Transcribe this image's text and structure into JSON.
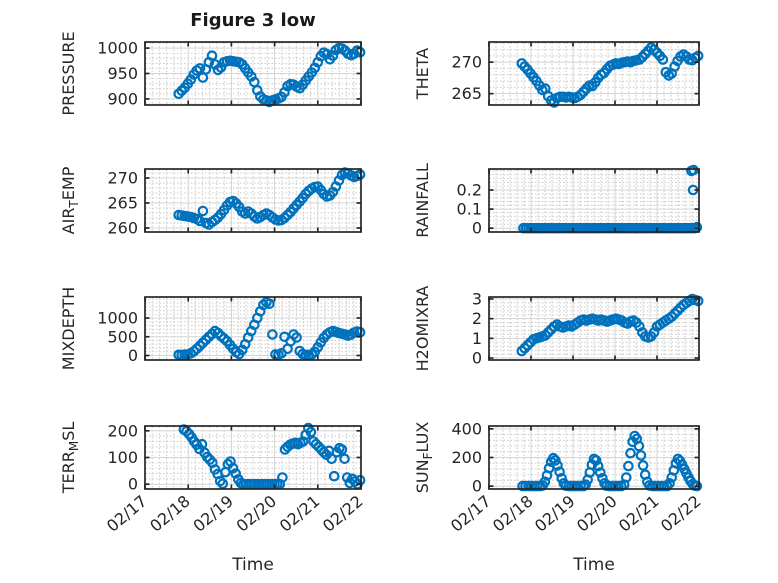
{
  "figure_title": "Figure 3 low",
  "colors": {
    "marker": "#0072BD",
    "axes": "#262626",
    "text": "#262626",
    "grid_major": "#d4d4d4",
    "grid_minor": "#cfcfcf",
    "background": "#ffffff"
  },
  "axes_shared": {
    "xlabel": "Time",
    "xticks": [
      17,
      18,
      19,
      20,
      21,
      22
    ],
    "xtick_labels": [
      "02/17",
      "02/18",
      "02/19",
      "02/20",
      "02/21",
      "02/22"
    ],
    "xlim": [
      17,
      22
    ],
    "x_minor_step": 0.16667,
    "grid": "on",
    "grid_minor_style": "dotted"
  },
  "chart_data": [
    {
      "name": "pressure",
      "type": "scatter",
      "ylabel": "PRESSURE",
      "ylabel_parts": [
        {
          "text": "PRESSURE"
        }
      ],
      "yticks": [
        900,
        950,
        1000
      ],
      "ylim": [
        888,
        1012
      ],
      "y_minor_step": 10,
      "x": [
        17.78,
        17.85,
        17.92,
        17.99,
        18.06,
        18.13,
        18.2,
        18.27,
        18.34,
        18.41,
        18.48,
        18.55,
        18.62,
        18.69,
        18.76,
        18.83,
        18.9,
        18.97,
        19.04,
        19.11,
        19.18,
        19.25,
        19.32,
        19.39,
        19.46,
        19.53,
        19.6,
        19.67,
        19.74,
        19.81,
        19.88,
        19.95,
        20.02,
        20.09,
        20.16,
        20.23,
        20.3,
        20.37,
        20.44,
        20.51,
        20.58,
        20.65,
        20.72,
        20.79,
        20.86,
        20.93,
        21,
        21.07,
        21.14,
        21.21,
        21.28,
        21.35,
        21.42,
        21.49,
        21.56,
        21.63,
        21.7,
        21.77,
        21.84,
        21.91,
        21.98
      ],
      "y": [
        910,
        916,
        922,
        930,
        938,
        948,
        956,
        960,
        942,
        958,
        972,
        985,
        968,
        957,
        962,
        972,
        974,
        975,
        974,
        973,
        972,
        968,
        960,
        952,
        944,
        933,
        917,
        905,
        899,
        897,
        894,
        897,
        899,
        901,
        904,
        913,
        925,
        929,
        928,
        924,
        921,
        928,
        936,
        944,
        952,
        961,
        972,
        984,
        991,
        988,
        978,
        985,
        996,
        1000,
        999,
        995,
        989,
        986,
        989,
        995,
        992
      ]
    },
    {
      "name": "theta",
      "type": "scatter",
      "ylabel": "THETA",
      "ylabel_parts": [
        {
          "text": "THETA"
        }
      ],
      "yticks": [
        265,
        270
      ],
      "ylim": [
        263.2,
        273.2
      ],
      "y_minor_step": 1,
      "x": [
        17.78,
        17.85,
        17.92,
        17.99,
        18.06,
        18.13,
        18.2,
        18.27,
        18.34,
        18.41,
        18.48,
        18.55,
        18.62,
        18.69,
        18.76,
        18.83,
        18.9,
        18.97,
        19.04,
        19.11,
        19.18,
        19.25,
        19.32,
        19.39,
        19.46,
        19.53,
        19.6,
        19.67,
        19.74,
        19.81,
        19.88,
        19.95,
        20.02,
        20.09,
        20.16,
        20.23,
        20.3,
        20.37,
        20.44,
        20.51,
        20.58,
        20.65,
        20.72,
        20.79,
        20.86,
        20.93,
        21,
        21.07,
        21.14,
        21.21,
        21.28,
        21.35,
        21.42,
        21.49,
        21.56,
        21.63,
        21.7,
        21.77,
        21.84,
        21.91,
        21.98
      ],
      "y": [
        269.8,
        269.3,
        268.8,
        268.2,
        267.6,
        267,
        266.3,
        265.6,
        265.8,
        264.6,
        263.9,
        263.6,
        264.3,
        264.5,
        264.5,
        264.4,
        264.5,
        264.4,
        264.3,
        264.5,
        264.8,
        265.3,
        265.8,
        266.3,
        266.2,
        266.8,
        267.5,
        268,
        268.3,
        268.9,
        269.4,
        269.6,
        269.8,
        269.7,
        269.9,
        270,
        270.1,
        270,
        270.2,
        270.3,
        270.4,
        270.8,
        271.3,
        271.8,
        272.3,
        272,
        271.5,
        271,
        270.4,
        268.4,
        267.9,
        268.2,
        269.3,
        270.2,
        270.9,
        271.2,
        270.9,
        270.4,
        270.3,
        270.7,
        271
      ]
    },
    {
      "name": "air_temp",
      "type": "scatter",
      "ylabel": "AIR_TEMP",
      "ylabel_parts": [
        {
          "text": "AIR"
        },
        {
          "text": "T",
          "sub": true
        },
        {
          "text": "EMP"
        }
      ],
      "yticks": [
        260,
        265,
        270
      ],
      "ylim": [
        259.2,
        271.8
      ],
      "y_minor_step": 1,
      "x": [
        17.78,
        17.85,
        17.92,
        17.99,
        18.06,
        18.13,
        18.2,
        18.27,
        18.34,
        18.41,
        18.48,
        18.55,
        18.62,
        18.69,
        18.76,
        18.83,
        18.9,
        18.97,
        19.04,
        19.11,
        19.18,
        19.25,
        19.32,
        19.39,
        19.46,
        19.53,
        19.6,
        19.67,
        19.74,
        19.81,
        19.88,
        19.95,
        20.02,
        20.09,
        20.16,
        20.23,
        20.3,
        20.37,
        20.44,
        20.51,
        20.58,
        20.65,
        20.72,
        20.79,
        20.86,
        20.93,
        21,
        21.07,
        21.14,
        21.21,
        21.28,
        21.35,
        21.42,
        21.49,
        21.56,
        21.63,
        21.7,
        21.77,
        21.84,
        21.91,
        21.98
      ],
      "y": [
        262.6,
        262.5,
        262.4,
        262.3,
        262.2,
        262,
        261.8,
        261.4,
        263.4,
        261,
        260.7,
        261.2,
        261.6,
        262.1,
        262.8,
        263.6,
        264.5,
        265.2,
        265.4,
        264.9,
        264.2,
        263.3,
        262.9,
        263.3,
        262.9,
        262.3,
        261.9,
        262.2,
        262.6,
        262.9,
        262.6,
        262.1,
        261.7,
        261.5,
        261.6,
        262,
        262.6,
        263.2,
        263.9,
        264.6,
        265.3,
        266,
        266.8,
        267.4,
        267.9,
        268.2,
        268.3,
        267.6,
        266.8,
        266.3,
        266.5,
        267.2,
        268.3,
        269.5,
        270.6,
        271.1,
        270.9,
        270.5,
        270.2,
        270.4,
        270.7
      ]
    },
    {
      "name": "rainfall",
      "type": "scatter",
      "ylabel": "RAINFALL",
      "ylabel_parts": [
        {
          "text": "RAINFALL"
        }
      ],
      "yticks": [
        0,
        0.1,
        0.2
      ],
      "ylim": [
        -0.02,
        0.31
      ],
      "y_minor_step": 0.02,
      "x": [
        17.82,
        17.88,
        17.94,
        18,
        18.06,
        18.12,
        18.18,
        18.24,
        18.3,
        18.36,
        18.42,
        18.48,
        18.54,
        18.6,
        18.66,
        18.72,
        18.78,
        18.84,
        18.9,
        18.96,
        19.02,
        19.08,
        19.14,
        19.2,
        19.26,
        19.32,
        19.38,
        19.44,
        19.5,
        19.56,
        19.62,
        19.68,
        19.74,
        19.8,
        19.86,
        19.92,
        19.98,
        20.04,
        20.1,
        20.16,
        20.22,
        20.28,
        20.34,
        20.4,
        20.46,
        20.52,
        20.58,
        20.64,
        20.7,
        20.76,
        20.82,
        20.88,
        20.94,
        21,
        21.06,
        21.12,
        21.18,
        21.24,
        21.3,
        21.36,
        21.42,
        21.48,
        21.54,
        21.6,
        21.66,
        21.72,
        21.78,
        21.84,
        21.9,
        21.82,
        21.87,
        21.86,
        21.95
      ],
      "y": [
        0,
        0,
        0,
        0,
        0,
        0,
        0,
        0,
        0,
        0,
        0,
        0,
        0,
        0,
        0,
        0,
        0,
        0,
        0,
        0,
        0,
        0,
        0,
        0,
        0,
        0,
        0,
        0,
        0,
        0,
        0,
        0,
        0,
        0,
        0,
        0,
        0,
        0,
        0,
        0,
        0,
        0,
        0,
        0,
        0,
        0,
        0,
        0,
        0,
        0,
        0,
        0,
        0,
        0,
        0,
        0,
        0,
        0,
        0,
        0,
        0,
        0,
        0,
        0,
        0,
        0,
        0,
        0,
        0,
        0.3,
        0.305,
        0.2,
        0.005
      ]
    },
    {
      "name": "mixdepth",
      "type": "scatter",
      "ylabel": "MIXDEPTH",
      "ylabel_parts": [
        {
          "text": "MIXDEPTH"
        }
      ],
      "yticks": [
        0,
        500,
        1000
      ],
      "ylim": [
        -120,
        1560
      ],
      "y_minor_step": 100,
      "x": [
        17.78,
        17.85,
        17.92,
        17.99,
        18.06,
        18.13,
        18.2,
        18.27,
        18.34,
        18.41,
        18.48,
        18.55,
        18.62,
        18.69,
        18.76,
        18.83,
        18.9,
        18.97,
        19.04,
        19.11,
        19.18,
        19.25,
        19.32,
        19.39,
        19.46,
        19.53,
        19.6,
        19.67,
        19.74,
        19.81,
        19.88,
        19.95,
        20.02,
        20.09,
        20.16,
        20.23,
        20.3,
        20.37,
        20.44,
        20.51,
        20.58,
        20.65,
        20.72,
        20.79,
        20.86,
        20.93,
        21,
        21.07,
        21.14,
        21.21,
        21.28,
        21.35,
        21.42,
        21.49,
        21.56,
        21.63,
        21.7,
        21.77,
        21.84,
        21.91,
        21.98
      ],
      "y": [
        20,
        15,
        25,
        30,
        60,
        110,
        180,
        260,
        340,
        420,
        500,
        570,
        650,
        600,
        520,
        450,
        380,
        280,
        180,
        90,
        40,
        150,
        300,
        480,
        650,
        820,
        1000,
        1180,
        1350,
        1420,
        1380,
        560,
        30,
        20,
        60,
        500,
        180,
        380,
        560,
        480,
        120,
        40,
        20,
        15,
        30,
        100,
        220,
        350,
        470,
        560,
        620,
        650,
        630,
        600,
        580,
        560,
        530,
        560,
        610,
        640,
        620
      ]
    },
    {
      "name": "h2omixra",
      "type": "scatter",
      "ylabel": "H2OMIXRA",
      "ylabel_parts": [
        {
          "text": "H2OMIXRA"
        }
      ],
      "yticks": [
        0,
        1,
        2,
        3
      ],
      "ylim": [
        -0.1,
        3.1
      ],
      "y_minor_step": 0.2,
      "x": [
        17.78,
        17.85,
        17.92,
        17.99,
        18.06,
        18.13,
        18.2,
        18.27,
        18.34,
        18.41,
        18.48,
        18.55,
        18.62,
        18.69,
        18.76,
        18.83,
        18.9,
        18.97,
        19.04,
        19.11,
        19.18,
        19.25,
        19.32,
        19.39,
        19.46,
        19.53,
        19.6,
        19.67,
        19.74,
        19.81,
        19.88,
        19.95,
        20.02,
        20.09,
        20.16,
        20.23,
        20.3,
        20.37,
        20.44,
        20.51,
        20.58,
        20.65,
        20.72,
        20.79,
        20.86,
        20.93,
        21,
        21.07,
        21.14,
        21.21,
        21.28,
        21.35,
        21.42,
        21.49,
        21.56,
        21.63,
        21.7,
        21.77,
        21.84,
        21.91,
        21.98
      ],
      "y": [
        0.35,
        0.5,
        0.65,
        0.8,
        0.95,
        1,
        1.05,
        1.1,
        1.15,
        1.3,
        1.45,
        1.6,
        1.7,
        1.6,
        1.55,
        1.6,
        1.65,
        1.6,
        1.7,
        1.8,
        1.9,
        1.95,
        1.9,
        1.95,
        2,
        1.95,
        1.9,
        1.95,
        1.9,
        1.85,
        1.9,
        1.95,
        2,
        1.95,
        1.9,
        1.8,
        1.75,
        1.85,
        1.9,
        1.8,
        1.6,
        1.3,
        1.1,
        1.05,
        1.1,
        1.3,
        1.6,
        1.7,
        1.8,
        1.9,
        2,
        2.1,
        2.25,
        2.4,
        2.55,
        2.7,
        2.8,
        2.9,
        3,
        2.95,
        2.9
      ]
    },
    {
      "name": "terr_msl",
      "type": "scatter",
      "ylabel": "TERR_MSL",
      "ylabel_parts": [
        {
          "text": "TERR"
        },
        {
          "text": "M",
          "sub": true
        },
        {
          "text": "SL"
        }
      ],
      "yticks": [
        0,
        100,
        200
      ],
      "ylim": [
        -18,
        218
      ],
      "y_minor_step": 20,
      "x": [
        17.9,
        17.96,
        18.02,
        18.08,
        18.14,
        18.2,
        18.26,
        18.32,
        18.38,
        18.44,
        18.5,
        18.56,
        18.62,
        18.68,
        18.74,
        18.8,
        18.86,
        18.92,
        18.98,
        19.04,
        19.1,
        19.16,
        19.22,
        19.28,
        19.34,
        19.4,
        19.46,
        19.52,
        19.58,
        19.64,
        19.7,
        19.76,
        19.82,
        19.88,
        19.94,
        20,
        20.06,
        20.12,
        20.18,
        20.24,
        20.3,
        20.36,
        20.42,
        20.48,
        20.54,
        20.6,
        20.66,
        20.72,
        20.78,
        20.84,
        20.9,
        20.96,
        21.02,
        21.08,
        21.14,
        21.2,
        21.26,
        21.32,
        21.38,
        21.44,
        21.5,
        21.56,
        21.62,
        21.68,
        21.74,
        21.8,
        21.86,
        21.92,
        21.98
      ],
      "y": [
        205,
        198,
        188,
        175,
        160,
        148,
        132,
        150,
        118,
        102,
        92,
        80,
        55,
        38,
        12,
        2,
        45,
        75,
        85,
        60,
        40,
        18,
        4,
        0,
        0,
        0,
        0,
        0,
        0,
        0,
        0,
        0,
        0,
        0,
        0,
        0,
        0,
        0,
        25,
        130,
        140,
        148,
        152,
        155,
        150,
        155,
        160,
        185,
        210,
        195,
        160,
        150,
        140,
        130,
        120,
        110,
        125,
        95,
        30,
        120,
        135,
        130,
        95,
        25,
        5,
        20,
        10,
        0,
        15
      ]
    },
    {
      "name": "sun_flux",
      "type": "scatter",
      "ylabel": "SUN_FLUX",
      "ylabel_parts": [
        {
          "text": "SUN"
        },
        {
          "text": "F",
          "sub": true
        },
        {
          "text": "LUX"
        }
      ],
      "yticks": [
        0,
        200,
        400
      ],
      "ylim": [
        -20,
        420
      ],
      "y_minor_step": 40,
      "x": [
        17.8,
        17.87,
        17.94,
        18.01,
        18.08,
        18.15,
        18.22,
        18.28,
        18.33,
        18.38,
        18.43,
        18.48,
        18.53,
        18.58,
        18.63,
        18.68,
        18.73,
        18.78,
        18.83,
        18.9,
        18.97,
        19.04,
        19.11,
        19.18,
        19.25,
        19.3,
        19.35,
        19.4,
        19.45,
        19.5,
        19.55,
        19.6,
        19.65,
        19.7,
        19.75,
        19.8,
        19.87,
        19.94,
        20.01,
        20.08,
        20.15,
        20.22,
        20.27,
        20.32,
        20.37,
        20.42,
        20.47,
        20.52,
        20.57,
        20.62,
        20.67,
        20.72,
        20.77,
        20.82,
        20.89,
        20.96,
        21.03,
        21.1,
        21.17,
        21.24,
        21.3,
        21.35,
        21.4,
        21.45,
        21.5,
        21.55,
        21.6,
        21.65,
        21.7,
        21.75,
        21.8,
        21.85,
        21.9,
        21.95
      ],
      "y": [
        0,
        0,
        0,
        0,
        0,
        0,
        0,
        5,
        30,
        75,
        125,
        170,
        195,
        180,
        145,
        100,
        55,
        20,
        3,
        0,
        0,
        0,
        0,
        0,
        0,
        10,
        45,
        95,
        150,
        190,
        180,
        140,
        95,
        55,
        20,
        3,
        0,
        0,
        0,
        0,
        0,
        10,
        60,
        140,
        230,
        310,
        350,
        330,
        280,
        215,
        145,
        80,
        30,
        5,
        0,
        0,
        0,
        0,
        0,
        0,
        20,
        60,
        110,
        160,
        190,
        175,
        150,
        120,
        90,
        60,
        35,
        15,
        3,
        0
      ]
    }
  ]
}
